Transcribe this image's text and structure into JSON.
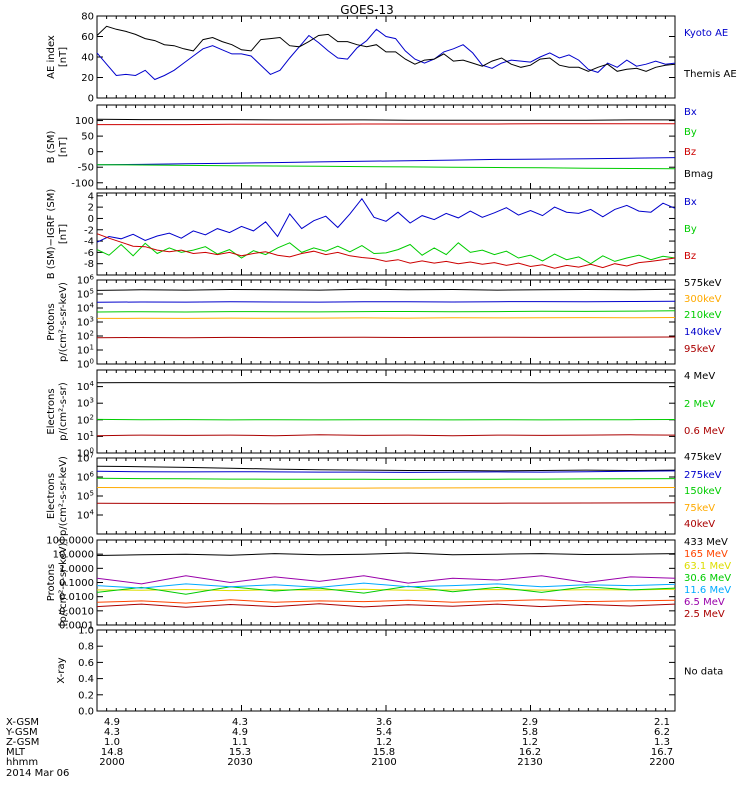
{
  "title": "GOES-13",
  "colors": {
    "black": "#000000",
    "blue": "#0000cc",
    "green": "#00cc00",
    "red": "#cc0000",
    "orange": "#ffaa00",
    "cyan": "#00aaff",
    "darkred": "#aa0000",
    "purple": "#9900aa",
    "salmon": "#ff4400",
    "yellow": "#dddd00"
  },
  "chart_data": [
    {
      "id": "ae",
      "type": "line",
      "ylabel": [
        "AE index",
        "[nT]"
      ],
      "scale": "linear",
      "ylim": [
        0,
        80
      ],
      "yticks": [
        0,
        20,
        40,
        60,
        80
      ],
      "series": [
        {
          "name": "Kyoto AE",
          "color": "#0000cc",
          "values": [
            44,
            33,
            22,
            23,
            22,
            27,
            18,
            22,
            27,
            34,
            41,
            48,
            51,
            47,
            43,
            43,
            41,
            32,
            23,
            27,
            39,
            50,
            61,
            54,
            46,
            39,
            38,
            49,
            56,
            67,
            60,
            58,
            46,
            38,
            34,
            38,
            45,
            48,
            52,
            44,
            32,
            29,
            34,
            37,
            36,
            35,
            40,
            44,
            39,
            42,
            37,
            28,
            25,
            34,
            30,
            37,
            31,
            33,
            36,
            33,
            34
          ]
        },
        {
          "name": "Themis AE",
          "color": "#000000",
          "values": [
            61,
            70,
            67,
            65,
            62,
            58,
            56,
            52,
            51,
            48,
            46,
            57,
            59,
            55,
            52,
            47,
            46,
            57,
            58,
            59,
            51,
            50,
            55,
            61,
            62,
            55,
            55,
            52,
            50,
            52,
            45,
            45,
            38,
            33,
            37,
            38,
            43,
            36,
            37,
            34,
            31,
            36,
            39,
            33,
            30,
            32,
            38,
            39,
            32,
            30,
            30,
            26,
            30,
            33,
            26,
            28,
            29,
            26,
            30,
            32,
            33
          ]
        }
      ]
    },
    {
      "id": "bsm",
      "type": "line",
      "ylabel": [
        "B (SM)",
        "[nT]"
      ],
      "scale": "linear",
      "ylim": [
        -120,
        150
      ],
      "yticks": [
        -100,
        -50,
        0,
        50,
        100
      ],
      "series": [
        {
          "name": "Bx",
          "color": "#0000cc",
          "values": [
            -42,
            -41,
            -39,
            -37,
            -35,
            -33,
            -31,
            -29,
            -27,
            -25,
            -24,
            -23,
            -21,
            -19
          ]
        },
        {
          "name": "By",
          "color": "#00cc00",
          "values": [
            -42,
            -43,
            -44,
            -45,
            -46,
            -47,
            -48,
            -49,
            -50,
            -51,
            -52,
            -53,
            -54,
            -55
          ]
        },
        {
          "name": "Bz",
          "color": "#cc0000",
          "values": [
            87,
            87,
            87,
            88,
            88,
            88,
            89,
            89,
            89,
            89,
            90,
            90,
            90,
            90
          ]
        },
        {
          "name": "Bmag",
          "color": "#000000",
          "values": [
            104,
            103,
            103,
            103,
            102,
            102,
            102,
            101,
            101,
            101,
            101,
            101,
            102,
            102
          ]
        }
      ]
    },
    {
      "id": "bdiff",
      "type": "line",
      "ylabel": [
        "B (SM)−IGRF (SM)",
        "[nT]"
      ],
      "scale": "linear",
      "ylim": [
        -10,
        4.5
      ],
      "yticks": [
        -8,
        -6,
        -4,
        -2,
        0,
        2,
        4
      ],
      "series": [
        {
          "name": "Bx",
          "color": "#0000cc",
          "values": [
            -4.2,
            -3.2,
            -3.6,
            -2.8,
            -3.9,
            -3.1,
            -2.6,
            -3.5,
            -2.2,
            -2.9,
            -1.8,
            -2.5,
            -1.4,
            -2.2,
            -0.6,
            -3.2,
            0.8,
            -1.8,
            -0.4,
            0.4,
            -1.6,
            0.8,
            3.5,
            0.2,
            -0.5,
            1.1,
            -0.8,
            0.5,
            -0.2,
            0.9,
            0.1,
            1.3,
            0.2,
            1.0,
            1.9,
            0.6,
            1.4,
            0.5,
            2.0,
            1.1,
            0.9,
            1.6,
            0.3,
            1.6,
            2.3,
            1.3,
            1.1,
            2.7,
            1.8
          ]
        },
        {
          "name": "By",
          "color": "#00cc00",
          "values": [
            -5.5,
            -6.5,
            -4.6,
            -6.6,
            -4.4,
            -6.2,
            -5.2,
            -6.0,
            -5.6,
            -5.0,
            -6.3,
            -5.5,
            -7.0,
            -5.7,
            -6.4,
            -5.2,
            -4.3,
            -6.0,
            -5.2,
            -5.8,
            -4.9,
            -5.9,
            -4.8,
            -6.2,
            -6.1,
            -5.5,
            -4.6,
            -6.5,
            -5.2,
            -6.4,
            -4.3,
            -6.0,
            -5.6,
            -6.4,
            -5.8,
            -7.0,
            -6.5,
            -7.5,
            -6.3,
            -7.3,
            -6.8,
            -8.0,
            -6.6,
            -7.6,
            -7.0,
            -6.5,
            -7.3,
            -6.7,
            -7.0
          ]
        },
        {
          "name": "Bz",
          "color": "#cc0000",
          "values": [
            -2.7,
            -3.5,
            -4.2,
            -4.9,
            -5.0,
            -5.6,
            -5.9,
            -5.6,
            -6.2,
            -6.0,
            -6.4,
            -6.0,
            -6.6,
            -6.2,
            -5.9,
            -6.5,
            -6.8,
            -6.2,
            -5.8,
            -6.4,
            -6.0,
            -6.6,
            -6.9,
            -7.1,
            -7.6,
            -7.3,
            -7.9,
            -7.5,
            -7.9,
            -7.6,
            -8.0,
            -7.7,
            -8.1,
            -7.8,
            -8.3,
            -7.9,
            -8.5,
            -8.2,
            -8.8,
            -8.3,
            -8.6,
            -8.1,
            -8.7,
            -8.0,
            -8.4,
            -7.8,
            -7.6,
            -7.3,
            -7.0
          ]
        }
      ]
    },
    {
      "id": "protons_lo",
      "type": "line",
      "ylabel": [
        "Protons",
        "p/(cm²-s-sr-keV)"
      ],
      "scale": "log",
      "ylim": [
        1,
        1000000
      ],
      "yticks": [
        1,
        10,
        100,
        1000,
        10000,
        100000,
        1000000
      ],
      "series": [
        {
          "name": "575keV",
          "color": "#000000",
          "values": [
            180000,
            200000,
            190000,
            210000,
            200000,
            190000,
            220000,
            200000,
            210000,
            190000,
            200000,
            210000,
            200000,
            220000
          ]
        },
        {
          "name": "300keV",
          "color": "#ffaa00",
          "values": [
            1800,
            1850,
            1800,
            1900,
            1850,
            1900,
            1950,
            1900,
            2000,
            1950,
            2000,
            2050,
            2000,
            2100
          ]
        },
        {
          "name": "210keV",
          "color": "#00cc00",
          "values": [
            5200,
            5400,
            5200,
            5500,
            5400,
            5300,
            5500,
            5600,
            5400,
            5500,
            5800,
            5700,
            6000,
            6300
          ]
        },
        {
          "name": "140keV",
          "color": "#0000cc",
          "values": [
            26000,
            27000,
            26500,
            27500,
            27000,
            26500,
            28000,
            27500,
            27000,
            28000,
            28500,
            28000,
            29000,
            30000
          ]
        },
        {
          "name": "95keV",
          "color": "#aa0000",
          "values": [
            75,
            78,
            76,
            80,
            77,
            79,
            81,
            78,
            80,
            82,
            79,
            81,
            83,
            85
          ]
        }
      ]
    },
    {
      "id": "electrons_hi",
      "type": "line",
      "ylabel": [
        "Electrons",
        "p/(cm²-s-sr)"
      ],
      "scale": "log",
      "ylim": [
        1,
        100000
      ],
      "yticks": [
        1,
        10,
        100,
        1000,
        10000
      ],
      "series": [
        {
          "name": "4 MeV",
          "color": "#000000",
          "values": [
            17000,
            17500,
            17000,
            17200,
            17400,
            17100,
            17300,
            17000,
            17200,
            17400,
            17100,
            17300,
            17500,
            17200
          ]
        },
        {
          "name": "2 MeV",
          "color": "#00cc00",
          "values": [
            105,
            100,
            103,
            98,
            101,
            99,
            102,
            100,
            98,
            101,
            99,
            100,
            102,
            104
          ]
        },
        {
          "name": "0.6 MeV",
          "color": "#aa0000",
          "values": [
            11,
            12,
            11.5,
            12,
            11,
            12.5,
            11.5,
            12,
            11,
            12,
            11.5,
            12,
            12.5,
            12
          ]
        }
      ]
    },
    {
      "id": "electrons_lo",
      "type": "line",
      "ylabel": [
        "Electrons",
        "p/(cm²-s-sr-keV)"
      ],
      "scale": "log",
      "ylim": [
        1000,
        10000000
      ],
      "yticks": [
        10000,
        100000,
        1000000,
        10000000
      ],
      "series": [
        {
          "name": "475keV",
          "color": "#000000",
          "values": [
            3700000,
            3500000,
            3200000,
            2900000,
            2600000,
            2400000,
            2300000,
            2200000,
            2200000,
            2100000,
            2200000,
            2300000,
            2200000,
            2300000
          ]
        },
        {
          "name": "275keV",
          "color": "#0000cc",
          "values": [
            2000000,
            1900000,
            1850000,
            1900000,
            1850000,
            1800000,
            1800000,
            1750000,
            1800000,
            1850000,
            1800000,
            1900000,
            2000000,
            2100000
          ]
        },
        {
          "name": "150keV",
          "color": "#00cc00",
          "values": [
            850000,
            820000,
            800000,
            780000,
            770000,
            760000,
            760000,
            750000,
            760000,
            770000,
            780000,
            790000,
            800000,
            820000
          ]
        },
        {
          "name": "75keV",
          "color": "#ffaa00",
          "values": [
            280000,
            275000,
            270000,
            265000,
            262000,
            260000,
            262000,
            265000,
            268000,
            270000,
            272000,
            275000,
            278000,
            280000
          ]
        },
        {
          "name": "40keV",
          "color": "#aa0000",
          "values": [
            42000,
            41000,
            40500,
            40000,
            39500,
            40000,
            40500,
            41000,
            41500,
            42000,
            42500,
            43000,
            43500,
            44000
          ]
        }
      ]
    },
    {
      "id": "protons_hi",
      "type": "line",
      "ylabel": [
        "Protons",
        "[p/(cm²-s-sr-keV)]"
      ],
      "scale": "log",
      "ylim": [
        0.0001,
        100
      ],
      "yticks": [
        0.0001,
        0.001,
        0.01,
        0.1,
        1,
        10,
        100
      ],
      "yticklabels": [
        "0.0001",
        "0.0010",
        "0.0100",
        "0.1000",
        "1.0000",
        "10.0000",
        "100.0000"
      ],
      "series": [
        {
          "name": "433 MeV",
          "color": "#000000",
          "values": [
            8,
            9,
            10,
            8.5,
            11,
            9,
            10,
            12,
            9,
            10,
            11,
            9.5,
            10,
            11
          ]
        },
        {
          "name": "165 MeV",
          "color": "#ff4400",
          "values": [
            0.004,
            0.005,
            0.0035,
            0.006,
            0.004,
            0.005,
            0.0045,
            0.0055,
            0.004,
            0.005,
            0.006,
            0.0045,
            0.005,
            0.0055
          ]
        },
        {
          "name": "63.1 MeV",
          "color": "#dddd00",
          "values": [
            0.03,
            0.028,
            0.032,
            0.027,
            0.031,
            0.029,
            0.033,
            0.028,
            0.03,
            0.032,
            0.029,
            0.031,
            0.03,
            0.033
          ]
        },
        {
          "name": "30.6 MeV",
          "color": "#00cc00",
          "values": [
            0.02,
            0.045,
            0.015,
            0.05,
            0.025,
            0.04,
            0.018,
            0.055,
            0.022,
            0.045,
            0.02,
            0.05,
            0.03,
            0.04
          ]
        },
        {
          "name": "11.6 MeV",
          "color": "#00aaff",
          "values": [
            0.06,
            0.04,
            0.08,
            0.05,
            0.07,
            0.045,
            0.09,
            0.05,
            0.06,
            0.08,
            0.05,
            0.07,
            0.06,
            0.075
          ]
        },
        {
          "name": "6.5 MeV",
          "color": "#9900aa",
          "values": [
            0.2,
            0.08,
            0.3,
            0.1,
            0.25,
            0.12,
            0.3,
            0.09,
            0.2,
            0.15,
            0.3,
            0.1,
            0.25,
            0.2
          ]
        },
        {
          "name": "2.5 MeV",
          "color": "#aa0000",
          "values": [
            0.002,
            0.003,
            0.0018,
            0.0028,
            0.002,
            0.0032,
            0.0019,
            0.0027,
            0.0021,
            0.003,
            0.002,
            0.0028,
            0.0022,
            0.003
          ]
        }
      ]
    },
    {
      "id": "xray",
      "type": "line",
      "ylabel": [
        "X-ray"
      ],
      "scale": "linear",
      "ylim": [
        0,
        1
      ],
      "yticks": [
        0,
        0.2,
        0.4,
        0.6,
        0.8,
        1.0
      ],
      "yticklabels": [
        "0.0",
        "0.2",
        "0.4",
        "0.6",
        "0.8",
        "1.0"
      ],
      "series": [],
      "message": "No data"
    }
  ],
  "bottom_axis": {
    "rows": [
      {
        "label": "X-GSM",
        "values": [
          "4.9",
          "4.3",
          "3.6",
          "2.9",
          "2.1"
        ]
      },
      {
        "label": "Y-GSM",
        "values": [
          "4.3",
          "4.9",
          "5.4",
          "5.8",
          "6.2"
        ]
      },
      {
        "label": "Z-GSM",
        "values": [
          "1.0",
          "1.1",
          "1.2",
          "1.2",
          "1.3"
        ]
      },
      {
        "label": "MLT",
        "values": [
          "14.8",
          "15.3",
          "15.8",
          "16.2",
          "16.7"
        ]
      },
      {
        "label": "hhmm",
        "values": [
          "2000",
          "2030",
          "2100",
          "2130",
          "2200"
        ]
      }
    ],
    "date": "2014 Mar 06"
  }
}
